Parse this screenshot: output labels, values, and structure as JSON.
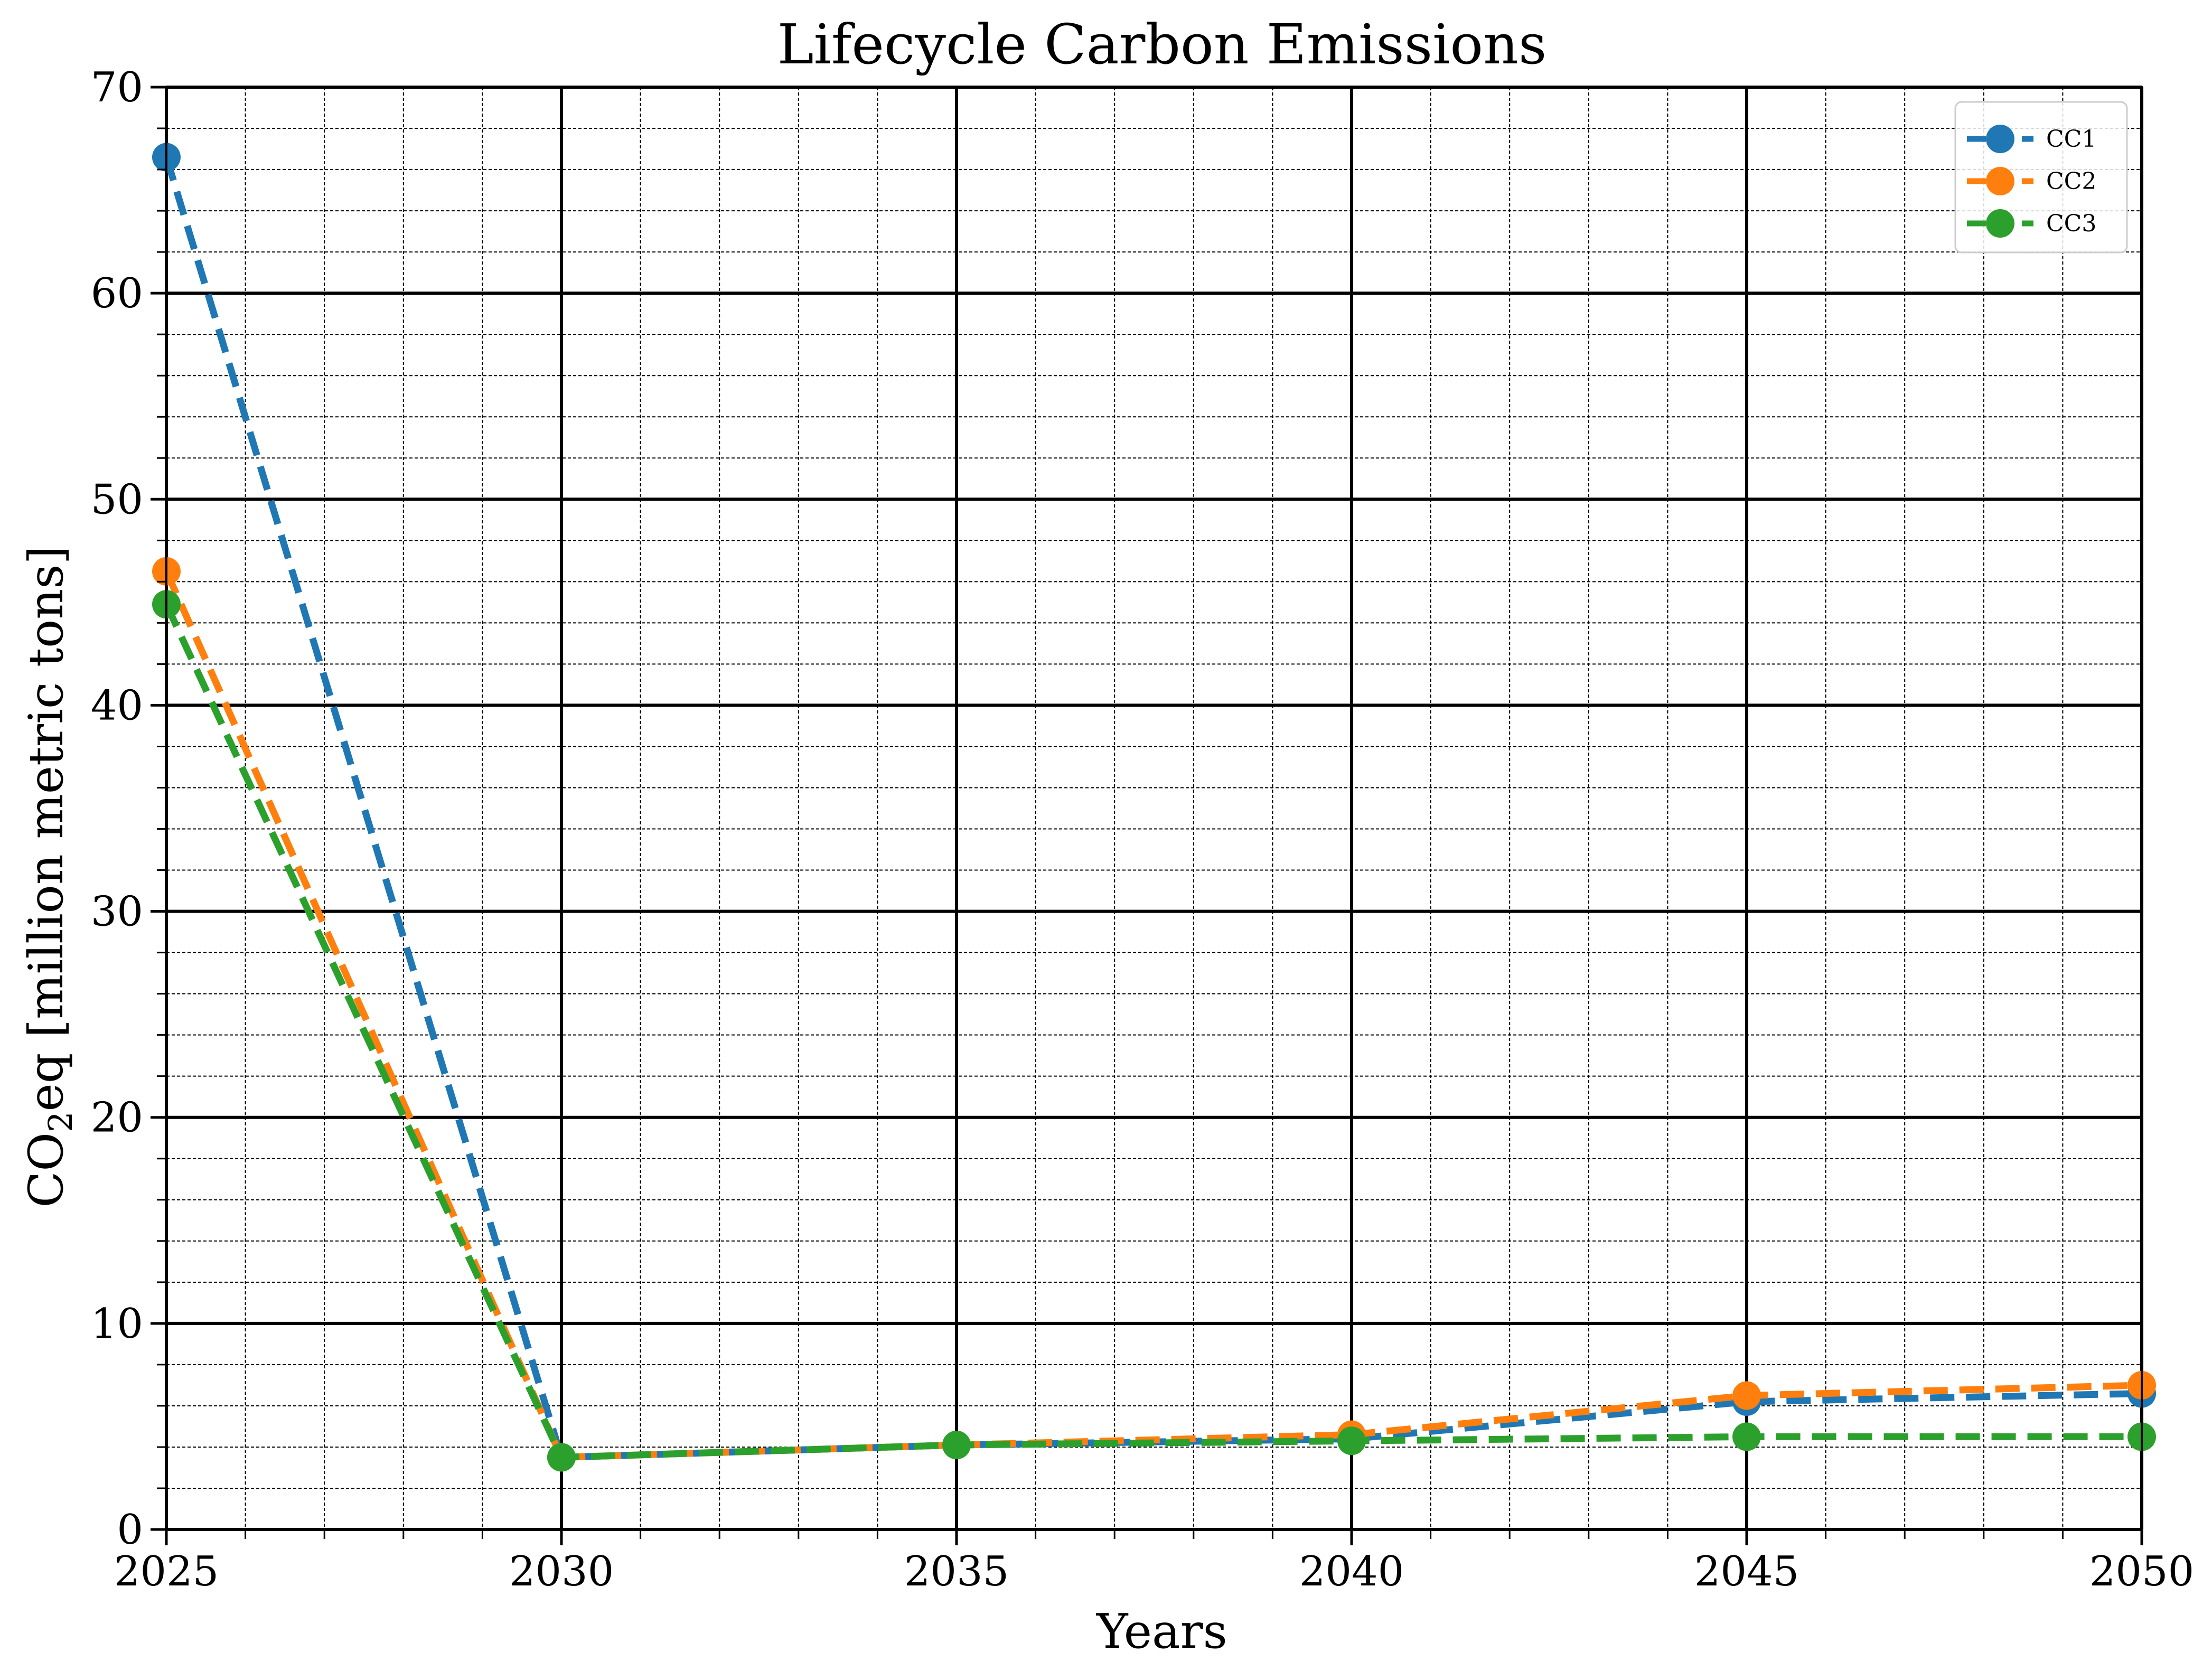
{
  "chart_data": {
    "type": "line",
    "title": "Lifecycle Carbon Emissions",
    "xlabel": "Years",
    "ylabel_parts": [
      "CO",
      "2",
      "eq [million metric tons]"
    ],
    "x": [
      2025,
      2030,
      2035,
      2040,
      2045,
      2050
    ],
    "xlim": [
      2025,
      2050
    ],
    "ylim": [
      0,
      70
    ],
    "x_major_ticks": [
      2025,
      2030,
      2035,
      2040,
      2045,
      2050
    ],
    "y_major_ticks": [
      0,
      10,
      20,
      30,
      40,
      50,
      60,
      70
    ],
    "x_minor_step": 1,
    "y_minor_step": 2,
    "grid": true,
    "legend_position": "top-right",
    "series": [
      {
        "name": "CC1",
        "color": "#1f77b4",
        "values": [
          66.6,
          3.5,
          4.1,
          4.4,
          6.2,
          6.6
        ]
      },
      {
        "name": "CC2",
        "color": "#ff7f0e",
        "values": [
          46.5,
          3.5,
          4.1,
          4.6,
          6.5,
          7.0
        ]
      },
      {
        "name": "CC3",
        "color": "#2ca02c",
        "values": [
          44.9,
          3.5,
          4.1,
          4.3,
          4.5,
          4.5
        ]
      }
    ]
  }
}
